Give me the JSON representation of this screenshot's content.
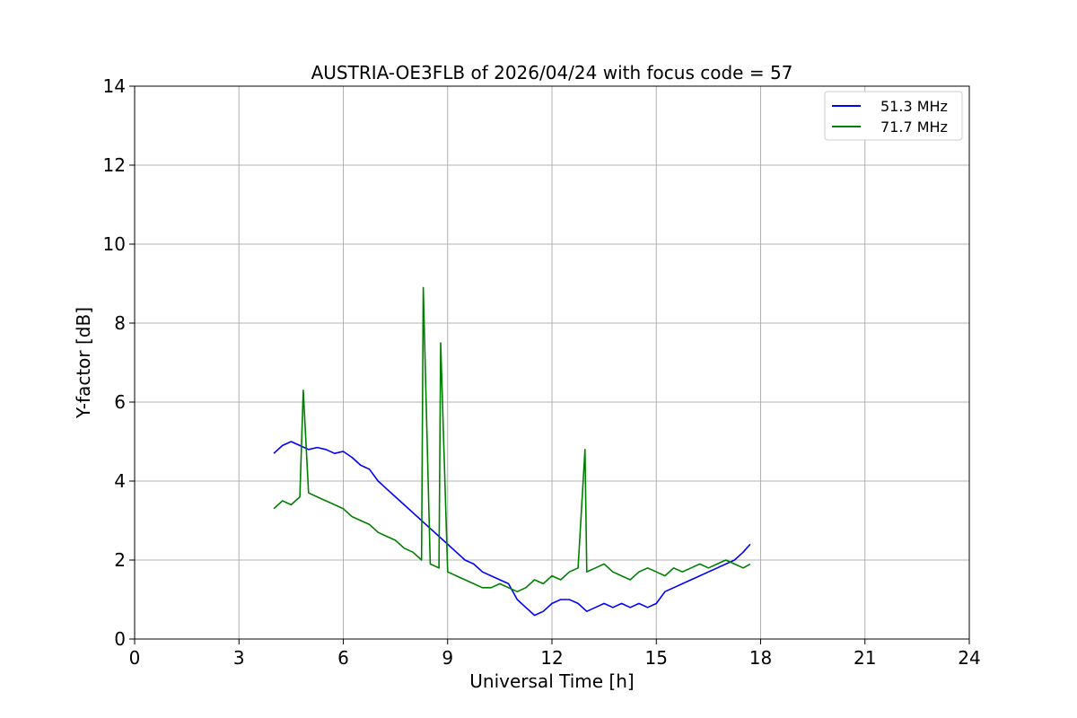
{
  "chart_data": {
    "type": "line",
    "title": "AUSTRIA-OE3FLB of 2026/04/24 with focus code = 57",
    "xlabel": "Universal Time [h]",
    "ylabel": "Y-factor [dB]",
    "xlim": [
      0,
      24
    ],
    "ylim": [
      0,
      14
    ],
    "xticks": [
      0,
      3,
      6,
      9,
      12,
      15,
      18,
      21,
      24
    ],
    "yticks": [
      0,
      2,
      4,
      6,
      8,
      10,
      12,
      14
    ],
    "grid": true,
    "legend_position": "top-right",
    "series": [
      {
        "name": "51.3 MHz",
        "color": "#0000ff",
        "x": [
          4.0,
          4.25,
          4.5,
          4.75,
          5.0,
          5.25,
          5.5,
          5.75,
          6.0,
          6.25,
          6.5,
          6.75,
          7.0,
          7.25,
          7.5,
          7.75,
          8.0,
          8.25,
          8.5,
          8.75,
          9.0,
          9.25,
          9.5,
          9.75,
          10.0,
          10.25,
          10.5,
          10.75,
          11.0,
          11.25,
          11.5,
          11.75,
          12.0,
          12.25,
          12.5,
          12.75,
          13.0,
          13.25,
          13.5,
          13.75,
          14.0,
          14.25,
          14.5,
          14.75,
          15.0,
          15.25,
          15.5,
          15.75,
          16.0,
          16.25,
          16.5,
          16.75,
          17.0,
          17.25,
          17.5,
          17.7
        ],
        "y": [
          4.7,
          4.9,
          5.0,
          4.9,
          4.8,
          4.85,
          4.8,
          4.7,
          4.75,
          4.6,
          4.4,
          4.3,
          4.0,
          3.8,
          3.6,
          3.4,
          3.2,
          3.0,
          2.8,
          2.6,
          2.4,
          2.2,
          2.0,
          1.9,
          1.7,
          1.6,
          1.5,
          1.4,
          1.0,
          0.8,
          0.6,
          0.7,
          0.9,
          1.0,
          1.0,
          0.9,
          0.7,
          0.8,
          0.9,
          0.8,
          0.9,
          0.8,
          0.9,
          0.8,
          0.9,
          1.2,
          1.3,
          1.4,
          1.5,
          1.6,
          1.7,
          1.8,
          1.9,
          2.0,
          2.2,
          2.4
        ]
      },
      {
        "name": "71.7 MHz",
        "color": "#008000",
        "x": [
          4.0,
          4.25,
          4.5,
          4.75,
          4.85,
          5.0,
          5.25,
          5.5,
          5.75,
          6.0,
          6.25,
          6.5,
          6.75,
          7.0,
          7.25,
          7.5,
          7.75,
          8.0,
          8.25,
          8.3,
          8.5,
          8.75,
          8.8,
          9.0,
          9.25,
          9.5,
          9.75,
          10.0,
          10.25,
          10.5,
          10.75,
          11.0,
          11.25,
          11.5,
          11.75,
          12.0,
          12.25,
          12.5,
          12.75,
          12.95,
          13.0,
          13.25,
          13.5,
          13.75,
          14.0,
          14.25,
          14.5,
          14.75,
          15.0,
          15.25,
          15.5,
          15.75,
          16.0,
          16.25,
          16.5,
          16.75,
          17.0,
          17.25,
          17.5,
          17.7
        ],
        "y": [
          3.3,
          3.5,
          3.4,
          3.6,
          6.3,
          3.7,
          3.6,
          3.5,
          3.4,
          3.3,
          3.1,
          3.0,
          2.9,
          2.7,
          2.6,
          2.5,
          2.3,
          2.2,
          2.0,
          8.9,
          1.9,
          1.8,
          7.5,
          1.7,
          1.6,
          1.5,
          1.4,
          1.3,
          1.3,
          1.4,
          1.3,
          1.2,
          1.3,
          1.5,
          1.4,
          1.6,
          1.5,
          1.7,
          1.8,
          4.8,
          1.7,
          1.8,
          1.9,
          1.7,
          1.6,
          1.5,
          1.7,
          1.8,
          1.7,
          1.6,
          1.8,
          1.7,
          1.8,
          1.9,
          1.8,
          1.9,
          2.0,
          1.9,
          1.8,
          1.9
        ]
      }
    ]
  }
}
